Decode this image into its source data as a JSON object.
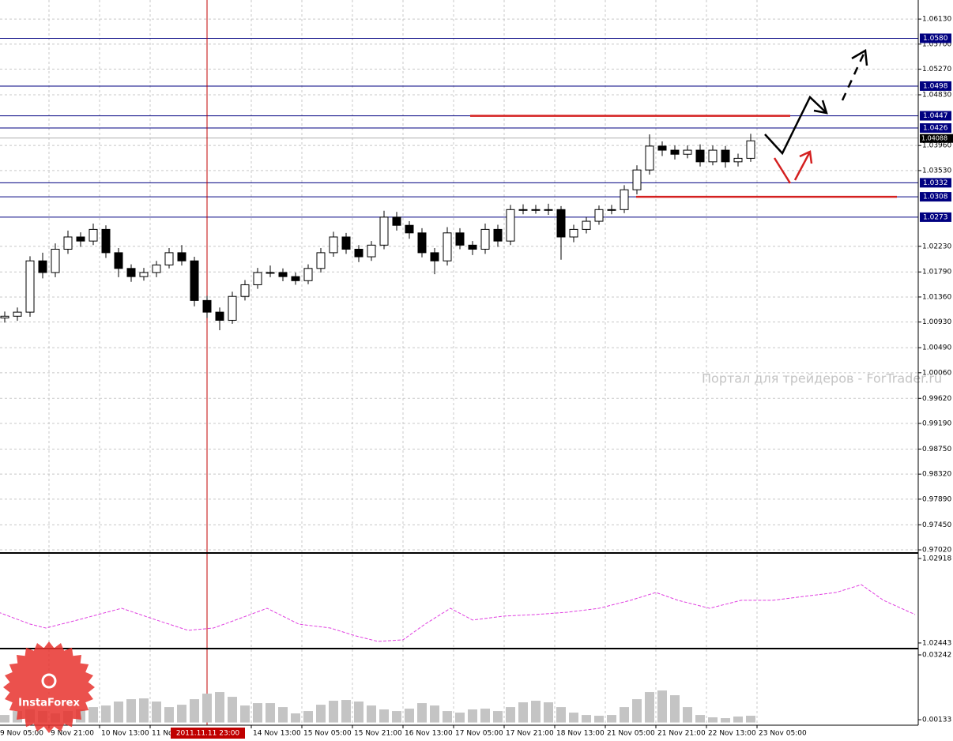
{
  "chart_data": {
    "type": "candlestick",
    "xlim": [
      0.5,
      291
    ],
    "ylim": [
      0.9698,
      1.0643
    ],
    "yticks": [
      {
        "value": 1.0613,
        "label": "1.06130"
      },
      {
        "value": 1.057,
        "label": "1.05700"
      },
      {
        "value": 1.0527,
        "label": "1.05270"
      },
      {
        "value": 1.0483,
        "label": "1.04830"
      },
      {
        "value": 1.0396,
        "label": "1.03960"
      },
      {
        "value": 1.0353,
        "label": "1.03530"
      },
      {
        "value": 1.0223,
        "label": "1.02230"
      },
      {
        "value": 1.0179,
        "label": "1.01790"
      },
      {
        "value": 1.0136,
        "label": "1.01360"
      },
      {
        "value": 1.0093,
        "label": "1.00930"
      },
      {
        "value": 1.0049,
        "label": "1.00490"
      },
      {
        "value": 1.0006,
        "label": "1.00060"
      },
      {
        "value": 0.9962,
        "label": "0.99620"
      },
      {
        "value": 0.9919,
        "label": "0.99190"
      },
      {
        "value": 0.9875,
        "label": "0.98750"
      },
      {
        "value": 0.9832,
        "label": "0.98320"
      },
      {
        "value": 0.9789,
        "label": "0.97890"
      },
      {
        "value": 0.9745,
        "label": "0.97450"
      },
      {
        "value": 0.9702,
        "label": "0.97020"
      }
    ],
    "xticks": [
      {
        "value": 0,
        "label": "9 Nov 05:00"
      },
      {
        "value": 16,
        "label": "9 Nov 21:00"
      },
      {
        "value": 32,
        "label": "10 Nov 13:00"
      },
      {
        "value": 48,
        "label": "11 No"
      },
      {
        "value": 80,
        "label": "14 Nov 13:00"
      },
      {
        "value": 96,
        "label": "15 Nov 05:00"
      },
      {
        "value": 112,
        "label": "15 Nov 21:00"
      },
      {
        "value": 128,
        "label": "16 Nov 13:00"
      },
      {
        "value": 144,
        "label": "17 Nov 05:00"
      },
      {
        "value": 160,
        "label": "17 Nov 21:00"
      },
      {
        "value": 176,
        "label": "18 Nov 13:00"
      },
      {
        "value": 192,
        "label": "21 Nov 05:00"
      },
      {
        "value": 208,
        "label": "21 Nov 21:00"
      },
      {
        "value": 224,
        "label": "22 Nov 13:00"
      },
      {
        "value": 240,
        "label": "23 Nov 05:00"
      }
    ],
    "grid": true,
    "x": [
      2,
      6,
      10,
      14,
      18,
      22,
      26,
      30,
      34,
      38,
      42,
      46,
      50,
      54,
      58,
      62,
      66,
      70,
      74,
      78,
      82,
      86,
      90,
      94,
      98,
      102,
      106,
      110,
      114,
      118,
      122,
      126,
      130,
      134,
      138,
      142,
      146,
      150,
      154,
      158,
      162,
      166,
      170,
      174,
      178,
      182,
      186,
      190,
      194,
      198,
      202,
      206,
      210,
      214,
      218,
      222,
      226,
      230,
      234,
      238
    ],
    "open": [
      1.01,
      1.0103,
      1.011,
      1.0198,
      1.0178,
      1.0218,
      1.0239,
      1.0232,
      1.0252,
      1.0212,
      1.0185,
      1.0171,
      1.0178,
      1.0191,
      1.0212,
      1.0198,
      1.013,
      1.011,
      1.0096,
      1.0137,
      1.0157,
      1.0178,
      1.0178,
      1.0171,
      1.0164,
      1.0185,
      1.0212,
      1.0239,
      1.0218,
      1.0205,
      1.0225,
      1.0273,
      1.0259,
      1.0246,
      1.0212,
      1.0198,
      1.0246,
      1.0225,
      1.0218,
      1.0252,
      1.0232,
      1.0286,
      1.0286,
      1.0286,
      1.0286,
      1.0239,
      1.0252,
      1.0266,
      1.0286,
      1.0286,
      1.032,
      1.0354,
      1.0395,
      1.0388,
      1.0381,
      1.0388,
      1.0368,
      1.0388,
      1.0368,
      1.0374
    ],
    "high": [
      1.0111,
      1.0118,
      1.0206,
      1.0212,
      1.0228,
      1.025,
      1.0247,
      1.0262,
      1.0259,
      1.022,
      1.0192,
      1.0186,
      1.0198,
      1.022,
      1.0225,
      1.0205,
      1.0138,
      1.0118,
      1.0145,
      1.0165,
      1.0186,
      1.019,
      1.0185,
      1.0178,
      1.0192,
      1.022,
      1.0248,
      1.0246,
      1.0225,
      1.0232,
      1.0284,
      1.0282,
      1.0266,
      1.0254,
      1.022,
      1.0256,
      1.0254,
      1.0232,
      1.0262,
      1.026,
      1.0294,
      1.0295,
      1.0294,
      1.0296,
      1.0292,
      1.026,
      1.0273,
      1.0293,
      1.0294,
      1.0328,
      1.0362,
      1.0415,
      1.0403,
      1.0396,
      1.0396,
      1.0398,
      1.0396,
      1.0395,
      1.0382,
      1.0416
    ],
    "low": [
      1.0092,
      1.0095,
      1.0102,
      1.0168,
      1.017,
      1.021,
      1.0222,
      1.0225,
      1.0203,
      1.017,
      1.0162,
      1.0164,
      1.017,
      1.0185,
      1.019,
      1.012,
      1.01,
      1.0079,
      1.009,
      1.013,
      1.015,
      1.017,
      1.0163,
      1.0157,
      1.0158,
      1.0178,
      1.0205,
      1.021,
      1.0196,
      1.0198,
      1.0218,
      1.025,
      1.0236,
      1.0204,
      1.0175,
      1.019,
      1.0218,
      1.0208,
      1.021,
      1.0222,
      1.0225,
      1.0278,
      1.0279,
      1.0277,
      1.02,
      1.023,
      1.0245,
      1.026,
      1.0278,
      1.028,
      1.0312,
      1.0346,
      1.0378,
      1.0372,
      1.0374,
      1.036,
      1.0362,
      1.0358,
      1.036,
      1.0368
    ],
    "close": [
      1.0103,
      1.011,
      1.0198,
      1.0178,
      1.0218,
      1.0239,
      1.0232,
      1.0252,
      1.0212,
      1.0185,
      1.0171,
      1.0178,
      1.0191,
      1.0212,
      1.0198,
      1.013,
      1.011,
      1.0096,
      1.0137,
      1.0157,
      1.0178,
      1.0178,
      1.0171,
      1.0164,
      1.0185,
      1.0212,
      1.0239,
      1.0218,
      1.0205,
      1.0225,
      1.0273,
      1.0259,
      1.0246,
      1.0212,
      1.0198,
      1.0246,
      1.0225,
      1.0218,
      1.0252,
      1.0232,
      1.0286,
      1.0286,
      1.0286,
      1.0286,
      1.0239,
      1.0252,
      1.0266,
      1.0286,
      1.0286,
      1.032,
      1.0354,
      1.0395,
      1.0388,
      1.0381,
      1.0388,
      1.0368,
      1.0388,
      1.0368,
      1.0374,
      1.0404
    ],
    "levels": [
      {
        "value": 1.058,
        "label": "1.0580"
      },
      1.0498,
      1.0447,
      1.0426,
      1.0332,
      1.0308,
      1.0273
    ],
    "level_color": "#000080",
    "current_price": 1.04088,
    "trendlines": [
      {
        "value": 1.0447,
        "x": [
          149.25,
          250.5
        ],
        "color": "#d42020"
      },
      {
        "value": 1.0308,
        "x": [
          201.75,
          284.25
        ],
        "color": "#d42020"
      }
    ],
    "crosshair": {
      "x": 66,
      "label": "2011.11.11 23:00",
      "color": "#c00000"
    },
    "watermark": "Портал для трейдеров - ForTrader.ru",
    "logo": "InstaForex",
    "indicators": [
      {
        "type": "line",
        "color": "#e040e0",
        "ylim": [
          1.02416,
          1.0294
        ],
        "yticks": [
          1.02918,
          1.02443
        ],
        "x": [
          0,
          10,
          15,
          25,
          39,
          50,
          60,
          68,
          75,
          85,
          95,
          105,
          113,
          120,
          128,
          135,
          143,
          150,
          160,
          170,
          180,
          190,
          200,
          208,
          215,
          225,
          235,
          245,
          255,
          265,
          273,
          280,
          290
        ],
        "values": [
          1.02616,
          1.02549,
          1.02527,
          1.02572,
          1.02638,
          1.02572,
          1.02514,
          1.02527,
          1.02572,
          1.02638,
          1.02549,
          1.02527,
          1.02483,
          1.02452,
          1.02461,
          1.02549,
          1.02638,
          1.02572,
          1.02594,
          1.02603,
          1.02616,
          1.02638,
          1.02683,
          1.02727,
          1.02683,
          1.02638,
          1.02683,
          1.02683,
          1.02705,
          1.02727,
          1.02771,
          1.02683,
          1.02603
        ]
      },
      {
        "type": "histogram",
        "color": "#c4c4c4",
        "ylim": [
          -0.0013,
          0.0347
        ],
        "yticks": [
          0.03242,
          0.00133
        ],
        "values": [
          0.0036,
          0.0055,
          0.00626,
          0.0055,
          0.00436,
          0.0055,
          0.00626,
          0.00739,
          0.00815,
          0.01005,
          0.01118,
          0.01156,
          0.01005,
          0.00739,
          0.00853,
          0.01118,
          0.01384,
          0.0146,
          0.01232,
          0.00815,
          0.00929,
          0.00929,
          0.00739,
          0.00436,
          0.0055,
          0.00853,
          0.01043,
          0.01081,
          0.01005,
          0.00815,
          0.00626,
          0.0055,
          0.00664,
          0.00929,
          0.00815,
          0.0055,
          0.00474,
          0.00626,
          0.00664,
          0.0055,
          0.00739,
          0.00967,
          0.01043,
          0.00967,
          0.00739,
          0.00474,
          0.0036,
          0.00323,
          0.0036,
          0.00739,
          0.01118,
          0.0146,
          0.01535,
          0.01308,
          0.00739,
          0.0036,
          0.00247,
          0.00209,
          0.00285,
          0.00323
        ]
      }
    ]
  }
}
